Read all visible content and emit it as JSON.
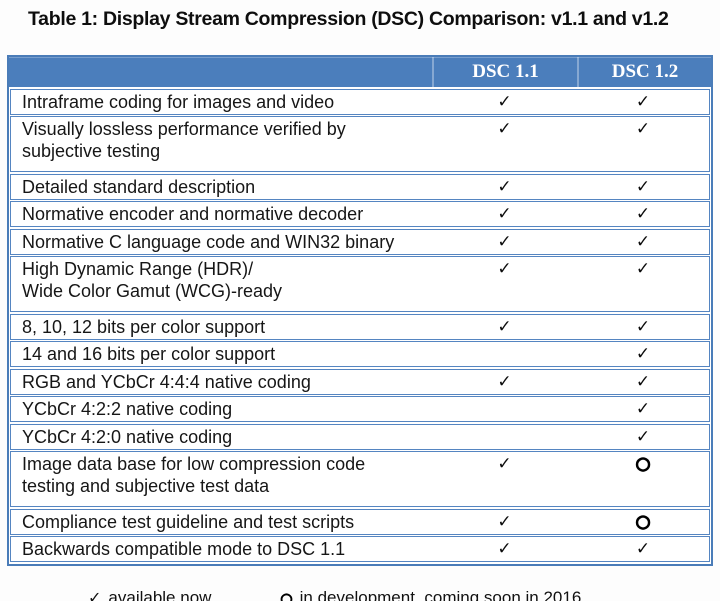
{
  "title": "Table 1: Display Stream Compression (DSC) Comparison: v1.1 and v1.2",
  "colors": {
    "header_bg": "#4b7ebc",
    "table_border": "#4a7cb8",
    "row_border": "#5585c1",
    "header_text": "#ffffff",
    "body_text": "#141414"
  },
  "table": {
    "symbols": {
      "check": "✓",
      "circle": "○"
    },
    "header": {
      "feature": "",
      "col1": "DSC 1.1",
      "col2": "DSC 1.2"
    },
    "rows": [
      {
        "feature": "Intraframe coding for images and video",
        "dsc11": "✓",
        "dsc12": "✓"
      },
      {
        "feature": "Visually lossless performance verified by\nsubjective testing",
        "dsc11": "✓",
        "dsc12": "✓"
      },
      {
        "feature": "Detailed standard description",
        "dsc11": "✓",
        "dsc12": "✓"
      },
      {
        "feature": "Normative encoder and normative decoder",
        "dsc11": "✓",
        "dsc12": "✓"
      },
      {
        "feature": "Normative C language code and WIN32 binary",
        "dsc11": "✓",
        "dsc12": "✓"
      },
      {
        "feature": "High Dynamic Range (HDR)/\nWide Color Gamut (WCG)-ready",
        "dsc11": "✓",
        "dsc12": "✓"
      },
      {
        "feature": "8, 10, 12 bits per color support",
        "dsc11": "✓",
        "dsc12": "✓"
      },
      {
        "feature": "14 and 16 bits per color support",
        "dsc11": "",
        "dsc12": "✓"
      },
      {
        "feature": "RGB and YCbCr 4:4:4 native coding",
        "dsc11": "✓",
        "dsc12": "✓"
      },
      {
        "feature": "YCbCr 4:2:2 native coding",
        "dsc11": "",
        "dsc12": "✓"
      },
      {
        "feature": "YCbCr 4:2:0 native coding",
        "dsc11": "",
        "dsc12": "✓"
      },
      {
        "feature": "Image data base for low compression code\ntesting and subjective test data",
        "dsc11": "✓",
        "dsc12": "○"
      },
      {
        "feature": "Compliance test guideline and test scripts",
        "dsc11": "✓",
        "dsc12": "○"
      },
      {
        "feature": "Backwards compatible mode to DSC 1.1",
        "dsc11": "✓",
        "dsc12": "✓"
      }
    ]
  },
  "legend": {
    "available": {
      "symbol": "✓",
      "label": "available now"
    },
    "development": {
      "symbol": "○",
      "label": "in development, coming soon in 2016"
    }
  }
}
